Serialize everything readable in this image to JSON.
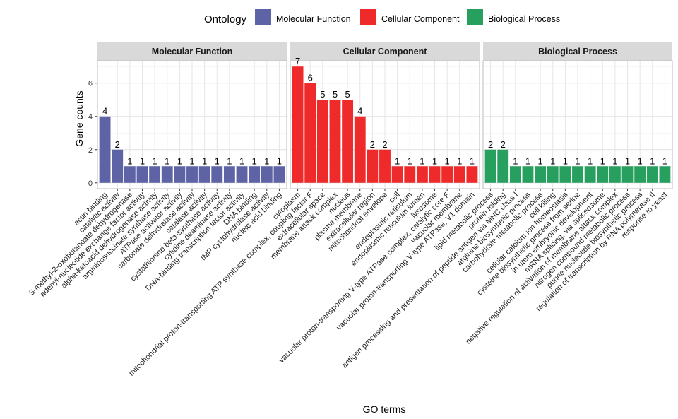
{
  "chart_data": {
    "type": "bar",
    "ylabel": "Gene counts",
    "xlabel": "GO terms",
    "ylim": [
      -0.35,
      7.35
    ],
    "yticks": [
      0,
      2,
      4,
      6
    ],
    "grid": true,
    "legend": {
      "title": "Ontology",
      "position": "top",
      "entries": [
        {
          "name": "Molecular Function",
          "color": "#5E63A6"
        },
        {
          "name": "Cellular Component",
          "color": "#EE2A2A"
        },
        {
          "name": "Biological Process",
          "color": "#27A05F"
        }
      ]
    },
    "facets": [
      {
        "name": "Molecular Function",
        "color": "#5E63A6",
        "categories": [
          "actin binding",
          "catalytic activity",
          "3-methyl-2-oxobutanoate dehydrogenase",
          "adenyl-nucleotide exchange factor activity",
          "alpha-ketoacid dehydrogenase activity",
          "argininosuccinate synthase activity",
          "ATPase activator activity",
          "carbonate dehydratase activity",
          "catalase activity",
          "cystathionine beta-synthase activity",
          "cytidine deaminase activity",
          "DNA-binding transcription factor activity",
          "DNA binding",
          "IMP cyclohydrolase activity",
          "nucleic acid binding"
        ],
        "values": [
          4,
          2,
          1,
          1,
          1,
          1,
          1,
          1,
          1,
          1,
          1,
          1,
          1,
          1,
          1
        ]
      },
      {
        "name": "Cellular Component",
        "color": "#EE2A2A",
        "categories": [
          "cytoplasm",
          "mitochondrial proton-transporting ATP synthase complex, coupling factor F",
          "extracellular space",
          "membrane attack complex",
          "nucleus",
          "plasma membrane",
          "extracellular region",
          "mitochondrial envelope",
          "cell",
          "endoplasmic reticulum",
          "endoplasmic reticulum lumen",
          "lysosome",
          "vacuolar proton-transporting V-type ATPase complex, catalytic core F",
          "vacuolar membrane",
          "vacuolar proton-transporting V-type ATPase, V1 domain"
        ],
        "values": [
          7,
          6,
          5,
          5,
          5,
          4,
          2,
          2,
          1,
          1,
          1,
          1,
          1,
          1,
          1
        ]
      },
      {
        "name": "Biological Process",
        "color": "#27A05F",
        "categories": [
          "lipid metabolic process",
          "protein folding",
          "antigen processing and presentation of peptide antigen via MHC class I",
          "arginine biosynthetic process",
          "carbohydrate metabolic process",
          "cell killing",
          "cellular calcium ion homeostasis",
          "cysteine biosynthetic process from serine",
          "in utero embryonic development",
          "mRNA splicing, via spliceosome",
          "negative regulation of activation of membrane attack complex",
          "nitrogen compound metabolic process",
          "purine nucleotide biosynthetic process",
          "regulation of transcription by RNA polymerase II",
          "response to yeast"
        ],
        "values": [
          2,
          2,
          1,
          1,
          1,
          1,
          1,
          1,
          1,
          1,
          1,
          1,
          1,
          1,
          1
        ]
      }
    ]
  }
}
